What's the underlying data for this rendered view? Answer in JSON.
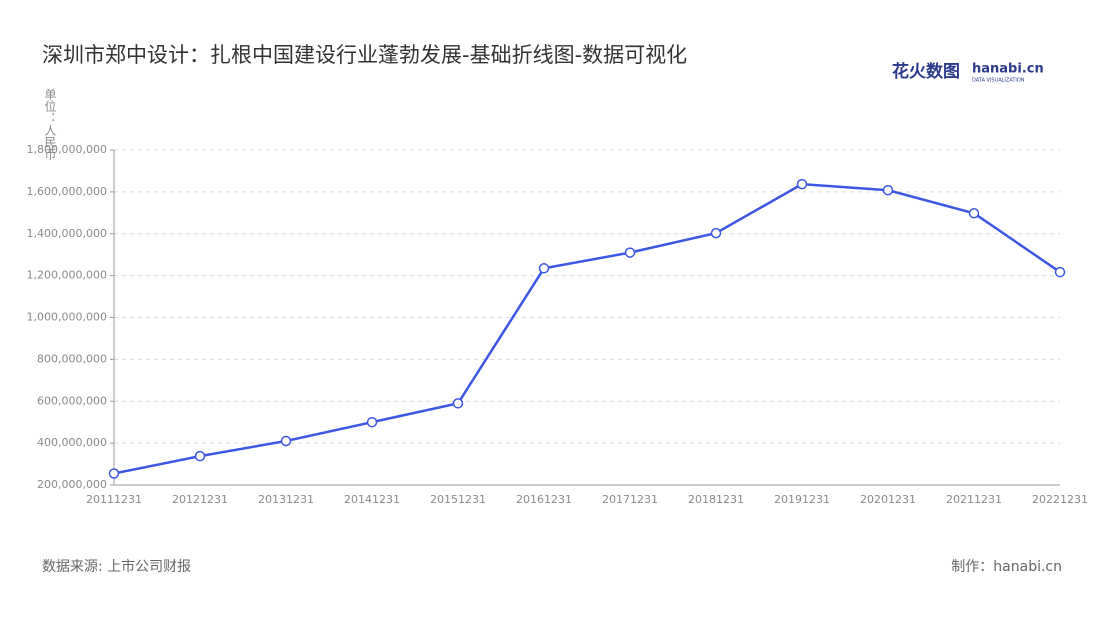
{
  "chart_data": {
    "type": "line",
    "title": "深圳市郑中设计：扎根中国建设行业蓬勃发展-基础折线图-数据可视化",
    "y_label": "单位：人民币",
    "logo": {
      "name": "花火数图",
      "brand": "hanabi.cn",
      "tagline": "DATA VISUALIZATION"
    },
    "source": "数据来源: 上市公司财报",
    "credit": "制作：hanabi.cn",
    "categories": [
      "20111231",
      "20121231",
      "20131231",
      "20141231",
      "20151231",
      "20161231",
      "20171231",
      "20181231",
      "20191231",
      "20201231",
      "20211231",
      "20221231"
    ],
    "series": [
      {
        "color": "#3b57e3",
        "values": [
          255000000,
          338000000,
          410000000,
          500000000,
          590000000,
          1235000000,
          1310000000,
          1403000000,
          1637000000,
          1608000000,
          1498000000,
          1217000000
        ]
      }
    ],
    "ylim": [
      200000000,
      1800000000
    ],
    "yticks": [
      {
        "value": 200000000,
        "label": "200,000,000"
      },
      {
        "value": 400000000,
        "label": "400,000,000"
      },
      {
        "value": 600000000,
        "label": "600,000,000"
      },
      {
        "value": 800000000,
        "label": "800,000,000"
      },
      {
        "value": 1000000000,
        "label": "1,000,000,000"
      },
      {
        "value": 1200000000,
        "label": "1,200,000,000"
      },
      {
        "value": 1400000000,
        "label": "1,400,000,000"
      },
      {
        "value": 1600000000,
        "label": "1,600,000,000"
      },
      {
        "value": 1800000000,
        "label": "1,800,000,000"
      }
    ],
    "grid": true
  }
}
